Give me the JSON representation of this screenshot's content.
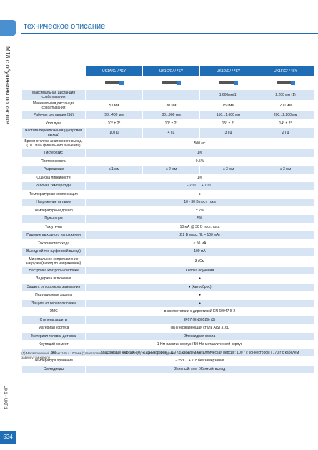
{
  "header": {
    "title": "техническое описание"
  },
  "side_label": "M18 с обучением по кнопке",
  "footer_label": "UK1 - UKR1",
  "page_number": "534",
  "table": {
    "columns": [
      "UK1A/G/-/-*SY",
      "UK1C/G/-/-*SY",
      "UK1D/G/-/-*SY",
      "UK1F/G/-/-*SY"
    ],
    "rows": [
      {
        "label": "Максимальная дистанция срабатывания",
        "cells": [
          "",
          "",
          "1,600мм(1)",
          "2,200 мм (1)"
        ]
      },
      {
        "label": "Минимальная дистанция срабатывания",
        "cells": [
          "50 мм",
          "80 мм",
          "150 мм",
          "200 мм"
        ]
      },
      {
        "label": "Рабочая дистанция (Sd)",
        "cells": [
          "50...400 мм",
          "80...900 мм",
          "150...1,600 мм",
          "200...2,200 мм"
        ]
      },
      {
        "label": "Угол луча",
        "cells": [
          "10° ± 2°",
          "10° ± 2°",
          "15° ± 2°",
          "14° ± 2°"
        ]
      },
      {
        "label": "Частота переключения (цифровой выход)",
        "cells": [
          "10 Гц",
          "4 Гц",
          "3 Гц",
          "2 Гц"
        ]
      },
      {
        "label": "Время отклика аналогового выход. (10...90% финального значения)",
        "cells": [
          "500 мс"
        ]
      },
      {
        "label": "Гистерезис",
        "cells": [
          "1%"
        ]
      },
      {
        "label": "Повторяемость",
        "cells": [
          "0.5%"
        ]
      },
      {
        "label": "Разрешение",
        "cells": [
          "≤ 1 мм",
          "≤ 2 мм",
          "≤ 3 мм",
          "≤ 3 мм"
        ]
      },
      {
        "label": "Ошибка линейности",
        "cells": [
          "1%"
        ]
      },
      {
        "label": "Рабочая температура",
        "cells": [
          "- 20°C... + 70°C"
        ]
      },
      {
        "label": "Температурная компенсация",
        "cells": [
          "●"
        ]
      },
      {
        "label": "Напряжение питания",
        "cells": [
          "10 - 30 В пост. тока"
        ]
      },
      {
        "label": "Температурный дрейф",
        "cells": [
          "± 2%"
        ]
      },
      {
        "label": "Пульсация",
        "cells": [
          "5%"
        ]
      },
      {
        "label": "Ток утечки",
        "cells": [
          "10 мА @ 30 В пост. тока"
        ]
      },
      {
        "label": "Падение выходного напряжения",
        "cells": [
          "2,2 В макс. (IL = 100 мА)"
        ]
      },
      {
        "label": "Ток холостого хода",
        "cells": [
          "≤ 50 мА"
        ]
      },
      {
        "label": "Выходной ток (цифровой выход)",
        "cells": [
          "100 мА"
        ]
      },
      {
        "label": "Минимальное сопротивление нагрузки (выход по напряжению)",
        "cells": [
          "3 кОм"
        ]
      },
      {
        "label": "Настройка контрольной точки",
        "cells": [
          "Кнопка обучения"
        ]
      },
      {
        "label": "Задержка включения",
        "cells": [
          "●"
        ]
      },
      {
        "label": "Защита от короткого замыкания",
        "cells": [
          "● (Автосброс)"
        ]
      },
      {
        "label": "Индукционная защита",
        "cells": [
          "●"
        ]
      },
      {
        "label": "Защита от переполюсовки",
        "cells": [
          "●"
        ]
      },
      {
        "label": "ЭМС",
        "cells": [
          "в соответствии с директивой EN 60947-5-2"
        ]
      },
      {
        "label": "Степень защиты",
        "cells": [
          "IP67 (EN60529) (3)"
        ]
      },
      {
        "label": "Материал корпуса",
        "cells": [
          "ПБТ/нержавеющая сталь AISI 316L"
        ]
      },
      {
        "label": "Материал головки датчика",
        "cells": [
          "Эпоксидная смола"
        ]
      },
      {
        "label": "Крутящий момент",
        "cells": [
          "1 Нм пластик корпус / 50 Нм металлический корпус"
        ]
      },
      {
        "label": "Вес",
        "cells": [
          "пластиковая версия: 70 г с коннектором / 110 г с кабелем металлическая версия: 100 г с коннектором / 170 г с кабелем"
        ]
      },
      {
        "label": "Температура хранения",
        "cells": [
          "- 35°C...+ 70° без замерзания"
        ]
      },
      {
        "label": "Светодиоды",
        "cells": [
          "Зеленый: эхо - Желтый: выход"
        ]
      }
    ]
  },
  "footnote": "(1) Металлический объект 100 x 100 мм (2) Металлический объект 200 x 200 (3) Защита гарантируется только при хорошо завернутом кабеле"
}
